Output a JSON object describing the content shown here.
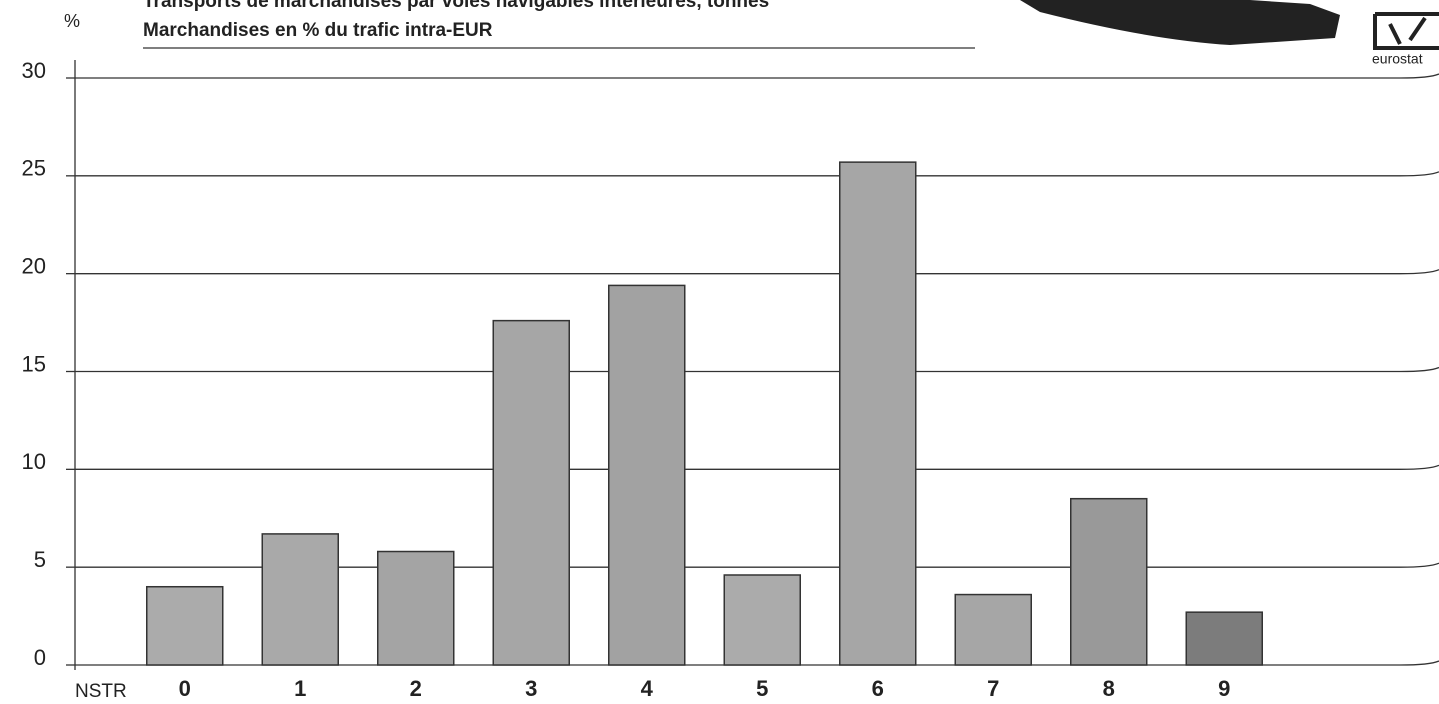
{
  "chart_data": {
    "type": "bar",
    "title": "Transports de marchandises par voies navigables intérieures, tonnes",
    "subtitle": "Marchandises en % du trafic intra-EUR",
    "y_label": "%",
    "x_label": "NSTR",
    "logo": "eurostat",
    "categories": [
      "0",
      "1",
      "2",
      "3",
      "4",
      "5",
      "6",
      "7",
      "8",
      "9"
    ],
    "values": [
      4.0,
      6.7,
      5.8,
      17.6,
      19.4,
      4.6,
      25.7,
      3.6,
      8.5,
      2.7
    ],
    "colors": [
      "#ababab",
      "#a9a9a9",
      "#a4a4a4",
      "#a6a6a6",
      "#a2a2a2",
      "#ababab",
      "#a6a6a6",
      "#a6a6a6",
      "#999999",
      "#7c7c7c"
    ],
    "ylim": [
      0,
      30
    ],
    "yticks": [
      0,
      5,
      10,
      15,
      20,
      25,
      30
    ],
    "grid": true
  }
}
